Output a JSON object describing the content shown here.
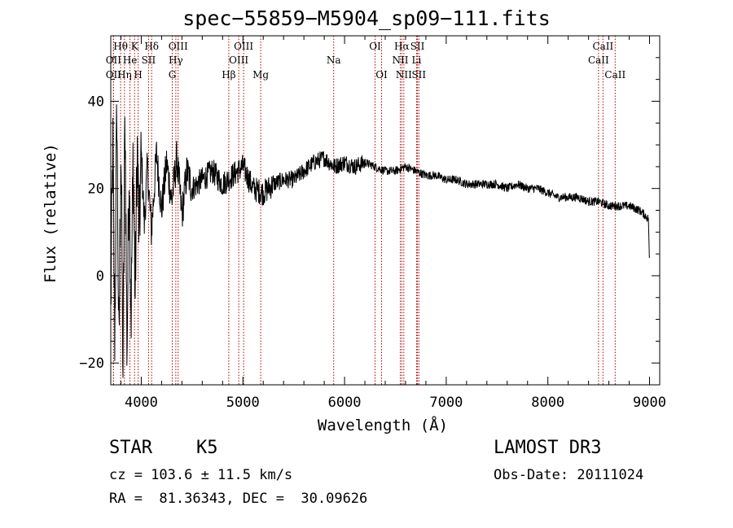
{
  "chart_data": {
    "type": "line",
    "title": "spec−55859−M5904_sp09−111.fits",
    "xlabel": "Wavelength (Å)",
    "ylabel": "Flux (relative)",
    "xlim": [
      3700,
      9100
    ],
    "ylim": [
      -25,
      55
    ],
    "x_ticks": [
      4000,
      5000,
      6000,
      7000,
      8000,
      9000
    ],
    "y_ticks": [
      -20,
      0,
      20,
      40
    ],
    "x_tick_labels": [
      "4000",
      "5000",
      "6000",
      "7000",
      "8000",
      "9000"
    ],
    "y_tick_labels": [
      "−20",
      "0",
      "20",
      "40"
    ],
    "series": [
      {
        "name": "flux",
        "x": [
          3700,
          3720,
          3740,
          3760,
          3780,
          3800,
          3820,
          3840,
          3860,
          3880,
          3900,
          3920,
          3940,
          3960,
          3980,
          4000,
          4030,
          4060,
          4100,
          4150,
          4200,
          4250,
          4300,
          4350,
          4400,
          4450,
          4500,
          4600,
          4700,
          4800,
          4850,
          4900,
          5000,
          5100,
          5200,
          5300,
          5400,
          5500,
          5600,
          5700,
          5800,
          5900,
          6000,
          6100,
          6200,
          6300,
          6400,
          6500,
          6600,
          6700,
          6800,
          6900,
          7000,
          7100,
          7200,
          7300,
          7400,
          7500,
          7600,
          7700,
          7800,
          7900,
          8000,
          8100,
          8200,
          8300,
          8400,
          8500,
          8600,
          8700,
          8800,
          8900,
          8950,
          8990,
          9000
        ],
        "y": [
          -8,
          30,
          -15,
          40,
          -20,
          32,
          -22,
          38,
          -18,
          25,
          -10,
          28,
          -5,
          30,
          8,
          28,
          12,
          25,
          10,
          28,
          15,
          26,
          17,
          27,
          14,
          24,
          20,
          22,
          24,
          21,
          22,
          23,
          25,
          20,
          19,
          21,
          22,
          22,
          24,
          26,
          27,
          25,
          26,
          25,
          26,
          25,
          24,
          24,
          25,
          24,
          23,
          23,
          22,
          22,
          21,
          21,
          21,
          21,
          20,
          21,
          20,
          20,
          19,
          18,
          18,
          18,
          17,
          17,
          16,
          16,
          16,
          15,
          14,
          13,
          1
        ]
      }
    ],
    "line_labels": [
      {
        "name": "Hθ",
        "x": 3797,
        "row": 0
      },
      {
        "name": "OII",
        "x": 3727,
        "row": 1
      },
      {
        "name": "OII",
        "x": 3727,
        "row": 2
      },
      {
        "name": "He",
        "x": 3889,
        "row": 1
      },
      {
        "name": "Hη",
        "x": 3835,
        "row": 2
      },
      {
        "name": "K",
        "x": 3934,
        "row": 0
      },
      {
        "name": "SII",
        "x": 4072,
        "row": 1
      },
      {
        "name": "H",
        "x": 3969,
        "row": 2
      },
      {
        "name": "Hδ",
        "x": 4102,
        "row": 0
      },
      {
        "name": "OIII",
        "x": 4363,
        "row": 0
      },
      {
        "name": "Hγ",
        "x": 4340,
        "row": 1
      },
      {
        "name": "G",
        "x": 4305,
        "row": 2
      },
      {
        "name": "Hβ",
        "x": 4861,
        "row": 2
      },
      {
        "name": "OIII",
        "x": 5007,
        "row": 0
      },
      {
        "name": "OIII",
        "x": 4959,
        "row": 1
      },
      {
        "name": "Mg",
        "x": 5175,
        "row": 2
      },
      {
        "name": "Na",
        "x": 5893,
        "row": 1
      },
      {
        "name": "OI",
        "x": 6300,
        "row": 0
      },
      {
        "name": "OI",
        "x": 6364,
        "row": 2
      },
      {
        "name": "Hα",
        "x": 6563,
        "row": 0
      },
      {
        "name": "NII",
        "x": 6548,
        "row": 1
      },
      {
        "name": "NII",
        "x": 6583,
        "row": 2
      },
      {
        "name": "SII",
        "x": 6717,
        "row": 0
      },
      {
        "name": "Li",
        "x": 6708,
        "row": 1
      },
      {
        "name": "SII",
        "x": 6731,
        "row": 2
      },
      {
        "name": "CaII",
        "x": 8542,
        "row": 0
      },
      {
        "name": "CaII",
        "x": 8498,
        "row": 1
      },
      {
        "name": "CaII",
        "x": 8662,
        "row": 2
      }
    ]
  },
  "info": {
    "object_class": "STAR",
    "subclass": "K5",
    "survey": "LAMOST DR3",
    "cz_line": "cz = 103.6 ± 11.5 km/s",
    "obs_date_line": "Obs-Date: 20111024",
    "radec_line": "RA =  81.36343, DEC =  30.09626"
  }
}
